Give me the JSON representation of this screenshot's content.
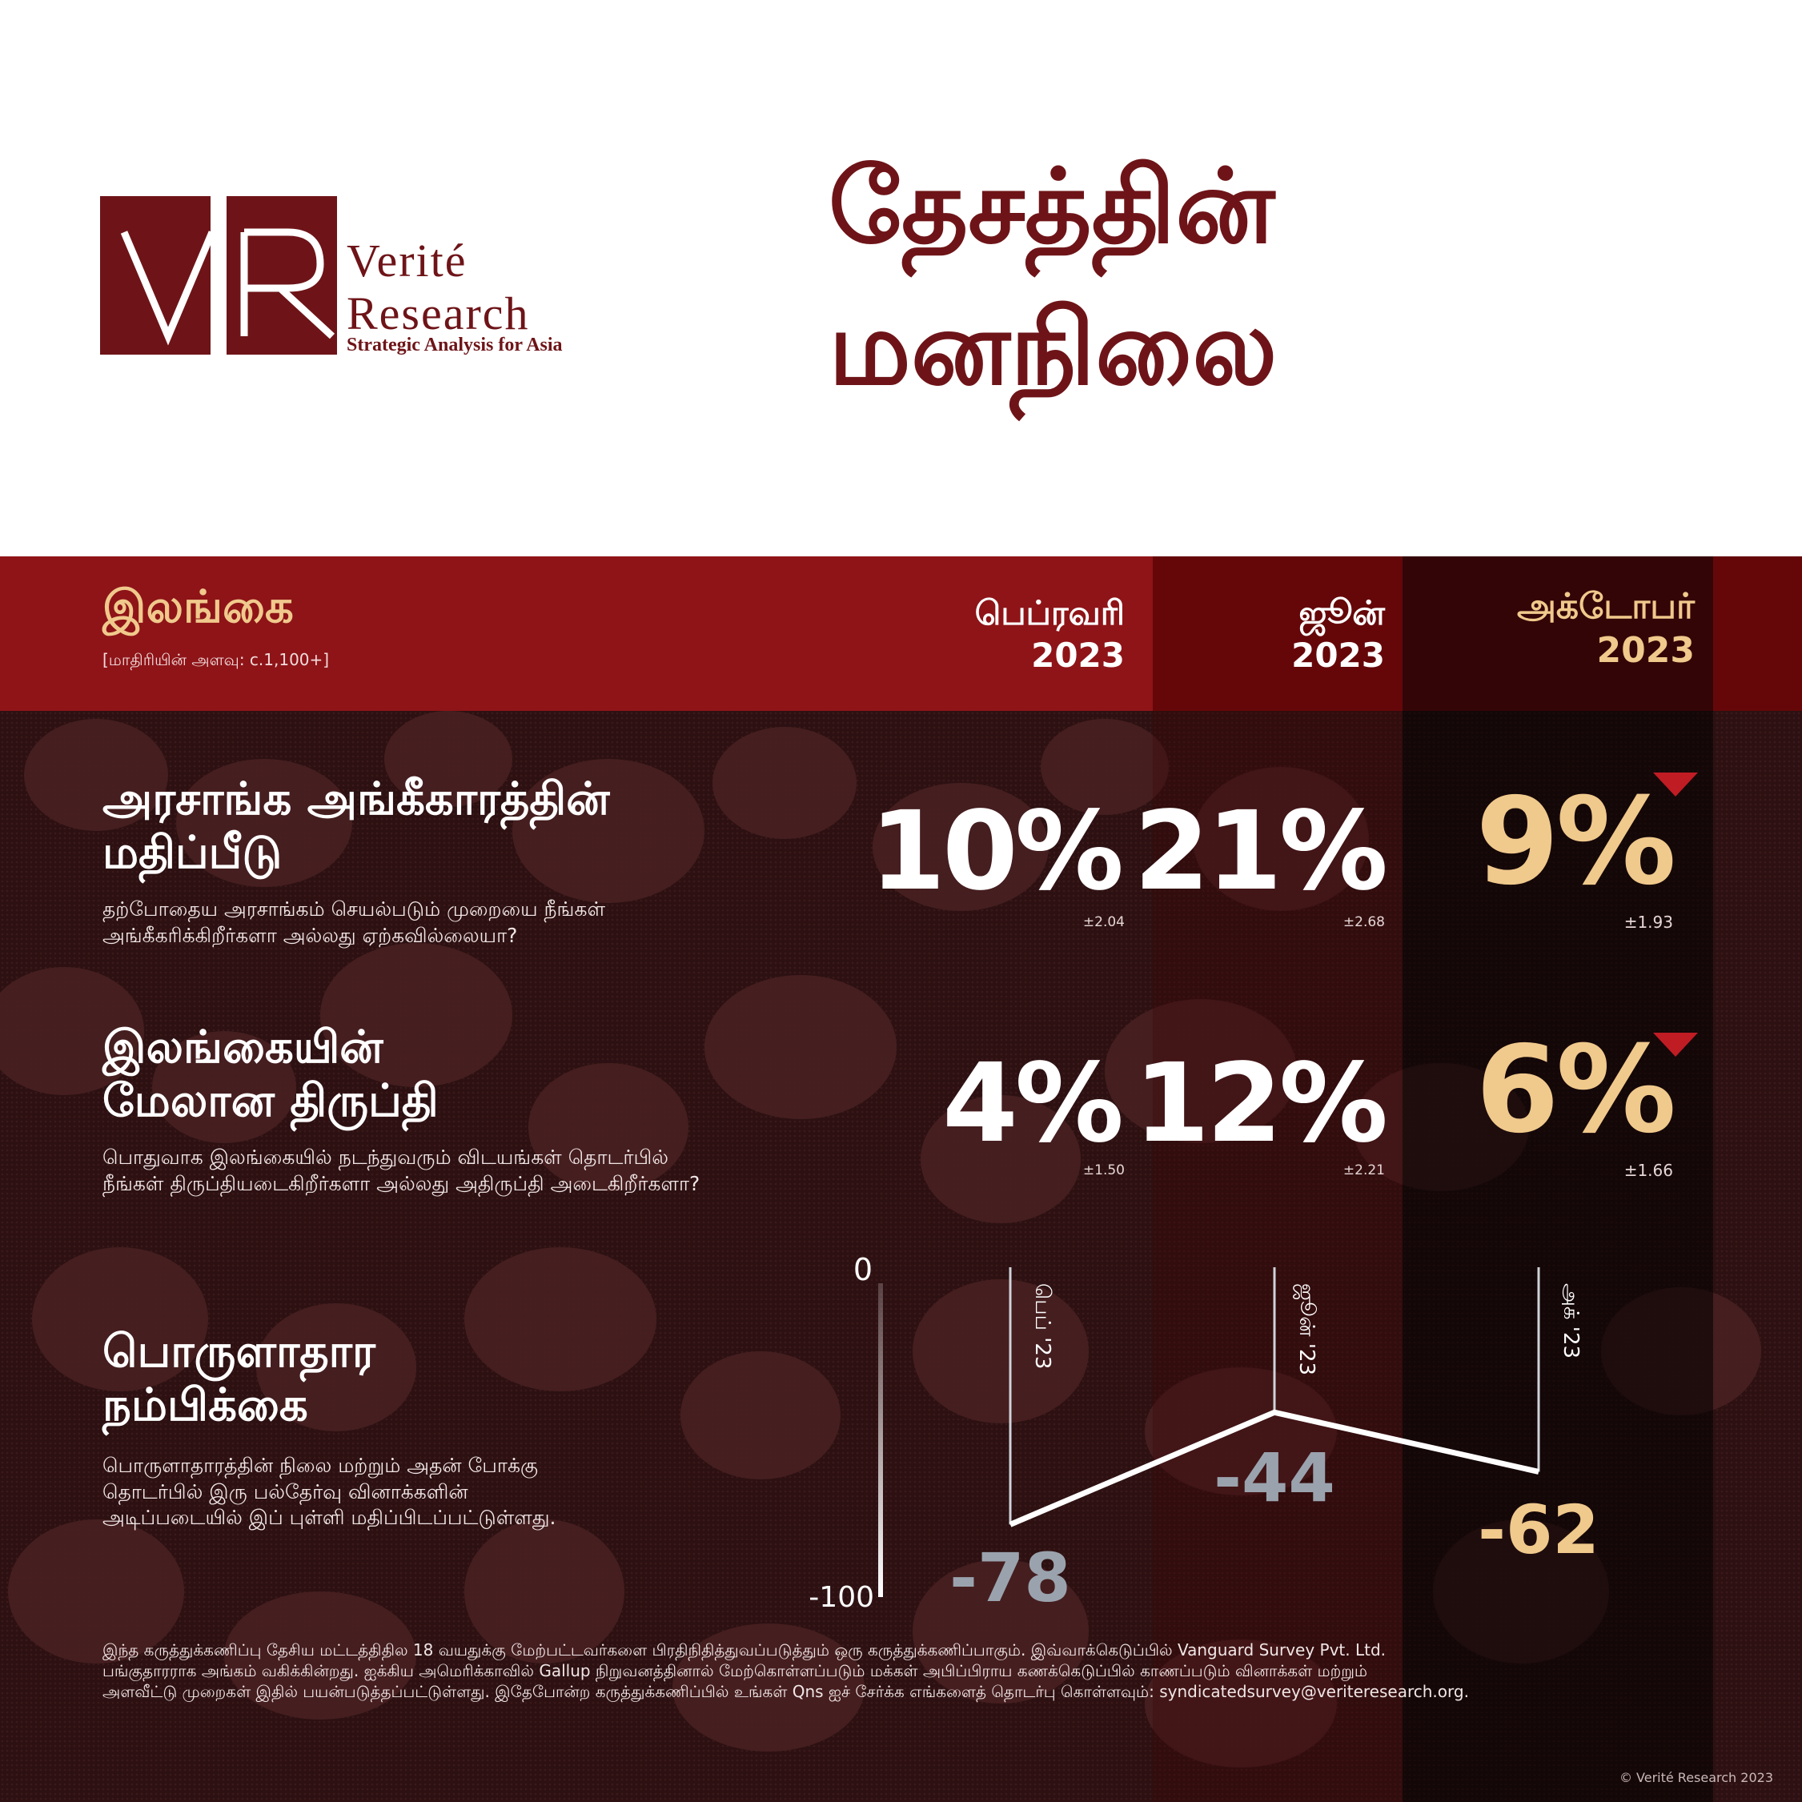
{
  "header": {
    "logo": {
      "monogram": "VR",
      "line1": "Verité",
      "line2": "Research",
      "tagline": "Strategic Analysis for Asia"
    },
    "title_line1": "தேசத்தின்",
    "title_line2": "மனநிலை"
  },
  "band": {
    "country": "இலங்கை",
    "sample": "[மாதிரியின் அளவு: c.1,100+]",
    "columns": [
      {
        "month": "பெப்ரவரி",
        "year": "2023"
      },
      {
        "month": "ஜூன்",
        "year": "2023"
      },
      {
        "month": "அக்டோபர்",
        "year": "2023"
      }
    ]
  },
  "questions": [
    {
      "title_line1": "அரசாங்க அங்கீகாரத்தின்",
      "title_line2": "மதிப்பீடு",
      "desc_line1": "தற்போதைய அரசாங்கம் செயல்படும் முறையை நீங்கள்",
      "desc_line2": "அங்கீகரிக்கிறீர்களா அல்லது ஏற்கவில்லையா?",
      "values": [
        "10%",
        "21%",
        "9%"
      ],
      "moe": [
        "±2.04",
        "±2.68",
        "±1.93"
      ],
      "latest_trend": "down"
    },
    {
      "title_line1": "இலங்கையின்",
      "title_line2": "மேலான திருப்தி",
      "desc_line1": "பொதுவாக இலங்கையில் நடந்துவரும் விடயங்கள் தொடர்பில்",
      "desc_line2": "நீங்கள் திருப்தியடைகிறீர்களா அல்லது அதிருப்தி அடைகிறீர்களா?",
      "values": [
        "4%",
        "12%",
        "6%"
      ],
      "moe": [
        "±1.50",
        "±2.21",
        "±1.66"
      ],
      "latest_trend": "down"
    }
  ],
  "economic": {
    "title_line1": "பொருளாதார",
    "title_line2": "நம்பிக்கை",
    "desc_line1": "பொருளாதாரத்தின் நிலை மற்றும் அதன் போக்கு",
    "desc_line2": "தொடர்பில் இரு பல்தேர்வு வினாக்களின்",
    "desc_line3": "அடிப்படையில் இப் புள்ளி மதிப்பிடப்பட்டுள்ளது."
  },
  "chart_data": {
    "type": "line",
    "categories": [
      "பெப் '23",
      "ஜூன் '23",
      "அக் '23"
    ],
    "values": [
      -78,
      -44,
      -62
    ],
    "value_labels": [
      "-78",
      "-44",
      "-62"
    ],
    "ylim": [
      -100,
      0
    ],
    "y_tick_labels": [
      "0",
      "-100"
    ]
  },
  "footer": {
    "line1": "இந்த கருத்துக்கணிப்பு தேசிய மட்டத்திதில 18 வயதுக்கு மேற்பட்டவர்களை பிரதிநிதித்துவப்படுத்தும் ஒரு கருத்துக்கணிப்பாகும்.  இவ்வாக்கெடுப்பில் Vanguard Survey Pvt. Ltd.",
    "line2": "பங்குதாரராக அங்கம் வகிக்கின்றது. ஐக்கிய அமெரிக்காவில் Gallup நிறுவனத்தினால் மேற்கொள்ளப்படும் மக்கள் அபிப்பிராய கணக்கெடுப்பில் காணப்படும் வினாக்கள் மற்றும்",
    "line3": "அளவீட்டு முறைகள் இதில் பயன்படுத்தப்பட்டுள்ளது. இதேபோன்ற கருத்துக்கணிப்பில் உங்கள் Qns ஐச் சேர்க்க எங்களைத் தொடர்பு கொள்ளவும்: syndicatedsurvey@veriteresearch.org.",
    "copyright": "© Verité Research 2023"
  },
  "colors": {
    "brand_maroon": "#6e1418",
    "band_red": "#8e1418",
    "accent_gold": "#f0c98c",
    "down_red": "#c01c24",
    "chart_grey": "#9aa3ad"
  }
}
